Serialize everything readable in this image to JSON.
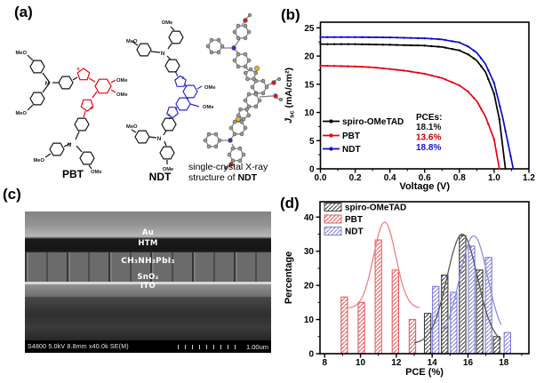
{
  "panels": {
    "a": {
      "label": "(a)",
      "molecules": {
        "pbt": {
          "name": "PBT",
          "core_color": "#e8000d"
        },
        "ndt": {
          "name": "NDT",
          "core_color": "#2a2ac8"
        },
        "xray_caption_line1": "single-crystal X-ray",
        "xray_caption_line2_prefix": "structure of ",
        "xray_caption_line2_bold": "NDT"
      },
      "atom_labels": {
        "meo": "MeO",
        "ome": "OMe",
        "n": "N",
        "s": "S"
      }
    },
    "b": {
      "label": "(b)"
    },
    "c": {
      "label": "(c)",
      "sem": {
        "layers": [
          "Au",
          "HTM",
          "CH₃NH₃PbI₃",
          "SnO₂",
          "ITO"
        ],
        "info_text": "S4800 5.0kV 8.8mm x40.0k SE(M)",
        "scale_text": "1.00um"
      }
    },
    "d": {
      "label": "(d)"
    }
  },
  "chart_data": [
    {
      "id": "jv",
      "type": "line",
      "title": "",
      "xlabel": "Voltage (V)",
      "ylabel": "Jsc (mA/cm²)",
      "ylabel_parts": {
        "symbol": "J",
        "sub": "sc",
        "unit": " (mA/cm²)"
      },
      "xlim": [
        0,
        1.2
      ],
      "ylim": [
        0,
        26
      ],
      "xticks": [
        0,
        0.2,
        0.4,
        0.6,
        0.8,
        1.0,
        1.2
      ],
      "yticks": [
        0,
        5,
        10,
        15,
        20,
        25
      ],
      "grid": false,
      "legend_position": "lower-left",
      "legend_title": "PCEs:",
      "series": [
        {
          "name": "spiro-OMeTAD",
          "color": "#000000",
          "pce": "18.1%",
          "pce_color": "#111111",
          "jsc": 22.1,
          "voc": 1.065,
          "points": [
            [
              0,
              22.1
            ],
            [
              0.2,
              22.1
            ],
            [
              0.4,
              22.0
            ],
            [
              0.6,
              21.85
            ],
            [
              0.7,
              21.6
            ],
            [
              0.8,
              21.0
            ],
            [
              0.85,
              20.3
            ],
            [
              0.9,
              19.2
            ],
            [
              0.95,
              17.2
            ],
            [
              1.0,
              13.3
            ],
            [
              1.03,
              8.8
            ],
            [
              1.065,
              0
            ]
          ]
        },
        {
          "name": "PBT",
          "color": "#e8000d",
          "pce": "13.6%",
          "pce_color": "#c00000",
          "jsc": 18.3,
          "voc": 1.03,
          "points": [
            [
              0,
              18.3
            ],
            [
              0.2,
              18.15
            ],
            [
              0.3,
              18.0
            ],
            [
              0.4,
              17.7
            ],
            [
              0.5,
              17.35
            ],
            [
              0.6,
              16.85
            ],
            [
              0.7,
              16.1
            ],
            [
              0.8,
              14.8
            ],
            [
              0.85,
              13.7
            ],
            [
              0.9,
              12.0
            ],
            [
              0.95,
              9.3
            ],
            [
              1.0,
              5.2
            ],
            [
              1.03,
              0
            ]
          ]
        },
        {
          "name": "NDT",
          "color": "#0a0ad0",
          "pce": "18.8%",
          "pce_color": "#1515cc",
          "jsc": 23.35,
          "voc": 1.11,
          "points": [
            [
              0,
              23.35
            ],
            [
              0.2,
              23.35
            ],
            [
              0.4,
              23.3
            ],
            [
              0.6,
              23.15
            ],
            [
              0.7,
              22.95
            ],
            [
              0.8,
              22.4
            ],
            [
              0.85,
              21.7
            ],
            [
              0.9,
              20.6
            ],
            [
              0.95,
              18.6
            ],
            [
              1.0,
              15.2
            ],
            [
              1.05,
              9.0
            ],
            [
              1.08,
              4.5
            ],
            [
              1.11,
              0
            ]
          ]
        }
      ]
    },
    {
      "id": "pce_hist",
      "type": "bar",
      "title": "",
      "xlabel": "PCE (%)",
      "ylabel": "Percentage",
      "xlim": [
        7.74,
        19.4
      ],
      "ylim": [
        0,
        44.5
      ],
      "xticks": [
        8,
        10,
        12,
        14,
        16,
        18
      ],
      "yticks": [
        0,
        10,
        20,
        30,
        40
      ],
      "grid": false,
      "legend_position": "upper-left",
      "bar_width": 0.36,
      "series": [
        {
          "name": "spiro-OMeTAD",
          "color": "#3c3c3c",
          "curve_color": "#5a5a5a",
          "x": [
            13.75,
            14.7,
            15.7,
            16.65,
            17.6
          ],
          "values": [
            11.8,
            23,
            34.6,
            24.5,
            5
          ],
          "fit": {
            "base": 3,
            "amp": 32,
            "mu": 15.68,
            "sigma": 0.85,
            "range": [
              13.0,
              17.85
            ]
          }
        },
        {
          "name": "PBT",
          "color": "#e85f5f",
          "curve_color": "#f08080",
          "x": [
            9.1,
            10.05,
            11.0,
            11.95,
            12.9
          ],
          "values": [
            16.6,
            15,
            33.3,
            24.5,
            10
          ],
          "fit": {
            "base": 13.3,
            "amp": 25.2,
            "mu": 11.35,
            "sigma": 0.62,
            "range": [
              9.35,
              13.3
            ]
          }
        },
        {
          "name": "NDT",
          "color": "#8080dc",
          "curve_color": "#9090e0",
          "x": [
            14.2,
            15.2,
            16.2,
            17.15,
            18.2
          ],
          "values": [
            19.7,
            18,
            31.5,
            28.2,
            6.2
          ],
          "fit": {
            "base": 4,
            "amp": 30.5,
            "mu": 16.32,
            "sigma": 0.78,
            "range": [
              14.65,
              17.85
            ]
          }
        }
      ]
    }
  ]
}
